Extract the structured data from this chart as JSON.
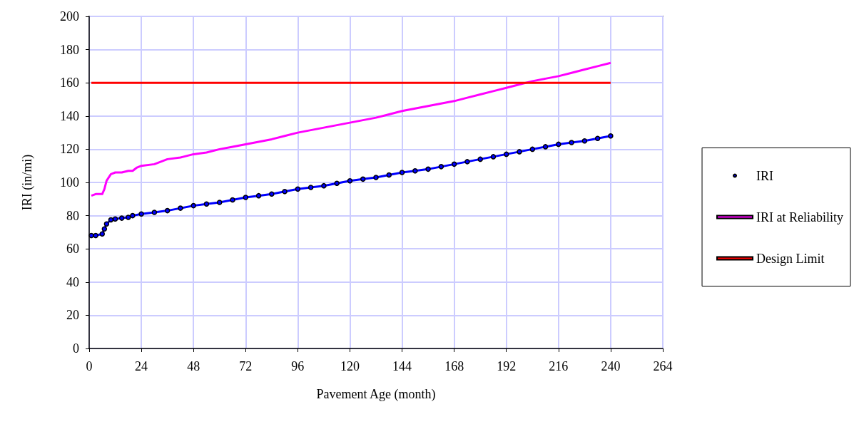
{
  "chart_data": {
    "type": "line",
    "xlabel": "Pavement Age (month)",
    "ylabel": "IRI (in/mi)",
    "xlim": [
      0,
      264
    ],
    "xticks": [
      0,
      24,
      48,
      72,
      96,
      120,
      144,
      168,
      192,
      216,
      240,
      264
    ],
    "ylim": [
      0,
      200
    ],
    "yticks": [
      0,
      20,
      40,
      60,
      80,
      100,
      120,
      140,
      160,
      180,
      200
    ],
    "grid": true,
    "legend": "right",
    "series": [
      {
        "name": "IRI",
        "color": "#0000ff",
        "marker": "circle",
        "x": [
          1,
          3,
          6,
          7,
          8,
          10,
          12,
          15,
          18,
          20,
          24,
          30,
          36,
          42,
          48,
          54,
          60,
          66,
          72,
          78,
          84,
          90,
          96,
          102,
          108,
          114,
          120,
          126,
          132,
          138,
          144,
          150,
          156,
          162,
          168,
          174,
          180,
          186,
          192,
          198,
          204,
          210,
          216,
          222,
          228,
          234,
          240
        ],
        "values": [
          68,
          68,
          69,
          72,
          75,
          77.5,
          78,
          78.5,
          79,
          80,
          81,
          82,
          83,
          84.5,
          86,
          87,
          88,
          89.5,
          91,
          92,
          93,
          94.5,
          96,
          97,
          98,
          99.5,
          101,
          102,
          103,
          104.5,
          106,
          107,
          108,
          109.5,
          111,
          112.5,
          114,
          115.5,
          117,
          118.5,
          120,
          121.5,
          123,
          124,
          125,
          126.5,
          128
        ]
      },
      {
        "name": "IRI at Reliability",
        "color": "#ff00ff",
        "marker": "none",
        "x": [
          1,
          3,
          6,
          7,
          8,
          10,
          12,
          15,
          18,
          20,
          22,
          24,
          30,
          36,
          42,
          48,
          54,
          60,
          66,
          72,
          78,
          84,
          90,
          96,
          102,
          108,
          114,
          120,
          126,
          132,
          138,
          144,
          150,
          156,
          162,
          168,
          174,
          180,
          186,
          192,
          198,
          204,
          210,
          216,
          222,
          228,
          234,
          240
        ],
        "values": [
          92,
          93,
          93,
          96,
          101,
          105,
          106,
          106,
          107,
          107,
          109,
          110,
          111,
          114,
          115,
          117,
          118,
          120,
          121.5,
          123,
          124.5,
          126,
          128,
          130,
          131.5,
          133,
          134.5,
          136,
          137.5,
          139,
          141,
          143,
          144.5,
          146,
          147.5,
          149,
          151,
          153,
          155,
          157,
          159,
          161,
          162.5,
          164,
          166,
          168,
          170,
          172
        ]
      },
      {
        "name": "Design Limit",
        "color": "#ff0000",
        "marker": "none",
        "x": [
          1,
          240
        ],
        "values": [
          160,
          160
        ]
      }
    ]
  }
}
